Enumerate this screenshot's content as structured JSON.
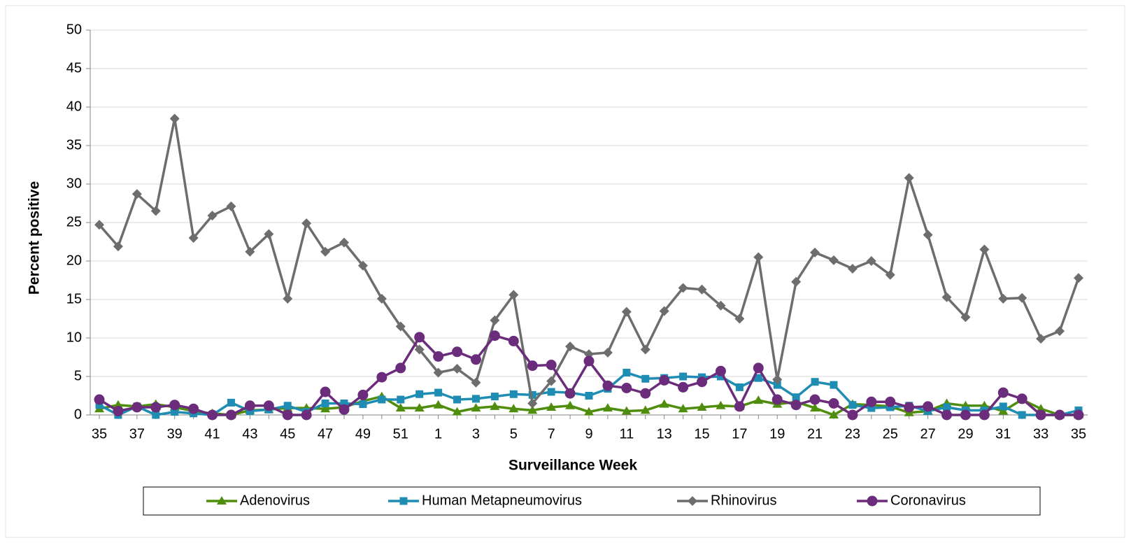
{
  "chart_data": {
    "type": "line",
    "x_label": "Surveillance Week",
    "y_label": "Percent positive",
    "categories": [
      "35",
      null,
      "37",
      null,
      "39",
      null,
      "41",
      null,
      "43",
      null,
      "45",
      null,
      "47",
      null,
      "49",
      null,
      "51",
      null,
      "1",
      null,
      "3",
      null,
      "5",
      null,
      "7",
      null,
      "9",
      null,
      "11",
      null,
      "13",
      null,
      "15",
      null,
      "17",
      null,
      "19",
      null,
      "21",
      null,
      "23",
      null,
      "25",
      null,
      "27",
      null,
      "29",
      null,
      "31",
      null,
      "33",
      null,
      "35"
    ],
    "ylim": [
      0,
      50
    ],
    "yticks": [
      0,
      5,
      10,
      15,
      20,
      25,
      30,
      35,
      40,
      45,
      50
    ],
    "grid": true,
    "legend": "bottom",
    "series": [
      {
        "name": "Adenovirus",
        "color": "#4f8e0c",
        "marker": "triangle",
        "values": [
          0.8,
          1.3,
          1.1,
          1.4,
          1.0,
          0.5,
          0.2,
          0,
          0.6,
          0.7,
          0.9,
          0.9,
          0.8,
          1.0,
          1.8,
          2.4,
          0.9,
          0.9,
          1.3,
          0.4,
          0.9,
          1.1,
          0.8,
          0.6,
          1.0,
          1.2,
          0.4,
          0.9,
          0.5,
          0.6,
          1.4,
          0.8,
          1.0,
          1.2,
          1.1,
          1.9,
          1.4,
          1.7,
          0.9,
          0,
          1.4,
          1.3,
          1.1,
          0.3,
          0.5,
          1.5,
          1.2,
          1.2,
          0.5,
          2.0,
          0.8,
          0,
          0
        ]
      },
      {
        "name": "Human Metapneumovirus",
        "color": "#1f8db3",
        "marker": "square",
        "values": [
          1.3,
          0,
          1.1,
          0,
          0.4,
          0.2,
          0,
          1.6,
          0.5,
          0.7,
          1.2,
          0.4,
          1.5,
          1.5,
          1.4,
          2.0,
          2.0,
          2.7,
          2.9,
          2.0,
          2.1,
          2.4,
          2.7,
          2.6,
          3.0,
          2.9,
          2.5,
          3.4,
          5.5,
          4.7,
          4.8,
          5.0,
          4.9,
          5.0,
          3.6,
          4.8,
          3.9,
          2.3,
          4.3,
          3.9,
          1.3,
          0.9,
          1.0,
          1.2,
          0.5,
          1.0,
          0.6,
          0.6,
          1.1,
          0,
          0,
          0,
          0.6
        ]
      },
      {
        "name": "Rhinovirus",
        "color": "#6d6d6d",
        "marker": "diamond",
        "values": [
          24.7,
          21.9,
          28.7,
          26.5,
          38.5,
          23.0,
          25.9,
          27.1,
          21.2,
          23.5,
          15.1,
          24.9,
          21.2,
          22.4,
          19.4,
          15.1,
          11.5,
          8.5,
          5.5,
          6.0,
          4.2,
          12.3,
          15.6,
          1.5,
          4.4,
          8.9,
          7.9,
          8.1,
          13.4,
          8.5,
          13.5,
          16.5,
          16.3,
          14.2,
          12.5,
          20.5,
          4.6,
          17.3,
          21.1,
          20.1,
          19.0,
          20.0,
          18.2,
          30.8,
          23.4,
          15.3,
          12.7,
          21.5,
          15.1,
          15.2,
          9.9,
          10.9,
          17.8
        ]
      },
      {
        "name": "Coronavirus",
        "color": "#6b2c7c",
        "marker": "circle",
        "values": [
          2.0,
          0.5,
          1.0,
          1.0,
          1.3,
          0.8,
          0,
          0,
          1.2,
          1.2,
          0,
          0,
          3.0,
          0.7,
          2.6,
          4.9,
          6.1,
          10.1,
          7.6,
          8.2,
          7.2,
          10.3,
          9.6,
          6.4,
          6.5,
          2.8,
          7.0,
          3.8,
          3.5,
          2.8,
          4.5,
          3.6,
          4.3,
          5.7,
          1.1,
          6.1,
          2.0,
          1.3,
          2.0,
          1.5,
          0,
          1.7,
          1.7,
          1.0,
          1.1,
          0,
          0,
          0,
          2.9,
          2.1,
          0,
          0,
          0
        ]
      }
    ]
  }
}
